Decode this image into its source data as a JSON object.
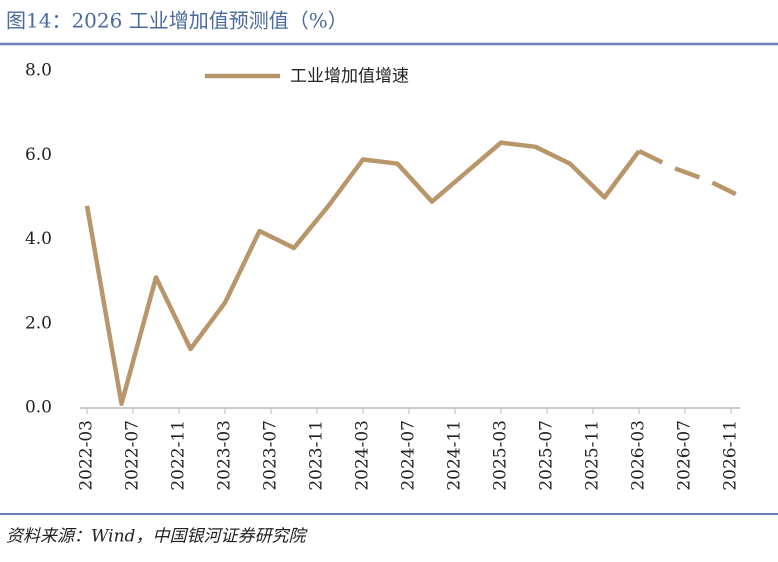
{
  "chart_data": {
    "type": "line",
    "title": "图14：2026 工业增加值预测值（%）",
    "source": "资料来源：Wind，中国银河证券研究院",
    "x": [
      "2022-03",
      "2022-06",
      "2022-09",
      "2022-12",
      "2023-03",
      "2023-06",
      "2023-09",
      "2023-12",
      "2024-03",
      "2024-06",
      "2024-09",
      "2024-12",
      "2025-03",
      "2025-06",
      "2025-09",
      "2025-12",
      "2026-03",
      "2026-06",
      "2026-09",
      "2026-12"
    ],
    "series": [
      {
        "name": "工业增加值增速",
        "color": "#b8966a",
        "values": [
          4.8,
          0.1,
          3.1,
          1.4,
          2.5,
          4.2,
          3.8,
          4.8,
          5.9,
          5.8,
          4.9,
          5.6,
          6.3,
          6.2,
          5.8,
          5.0,
          6.1,
          5.7,
          5.4,
          5.0
        ]
      }
    ],
    "dashed_from": "2026-03",
    "xlim": [
      "2022-03",
      "2026-12"
    ],
    "xticks": [
      "2022-03",
      "2022-07",
      "2022-11",
      "2023-03",
      "2023-07",
      "2023-11",
      "2024-03",
      "2024-07",
      "2024-11",
      "2025-03",
      "2025-07",
      "2025-11",
      "2026-03",
      "2026-07",
      "2026-11"
    ],
    "ylim": [
      0,
      8
    ],
    "yticks": [
      {
        "value": 0,
        "label": "0.0"
      },
      {
        "value": 2,
        "label": "2.0"
      },
      {
        "value": 4,
        "label": "4.0"
      },
      {
        "value": 6,
        "label": "6.0"
      },
      {
        "value": 8,
        "label": "8.0"
      }
    ],
    "legend": "top-left",
    "grid": false
  }
}
